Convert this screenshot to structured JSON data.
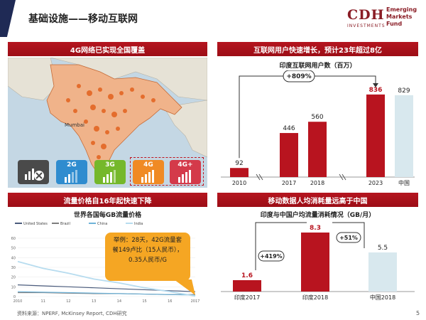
{
  "header": {
    "title": "基础设施——移动互联网",
    "logo_main": "CDH",
    "logo_sub_line1": "Emerging",
    "logo_sub_line2": "Markets",
    "logo_sub_line3": "Fund",
    "logo_sub_bottom": "INVESTMENTS"
  },
  "panel_top_left": {
    "title": "4G网络已实现全国覆盖",
    "icons": [
      {
        "name": "no-signal-icon",
        "label": ""
      },
      {
        "name": "2g-icon",
        "label": "2G"
      },
      {
        "name": "3g-icon",
        "label": "3G"
      },
      {
        "name": "4g-icon",
        "label": "4G"
      },
      {
        "name": "4g-plus-icon",
        "label": "4G+"
      }
    ],
    "map_labels": {
      "mumbai": "Mumbai"
    }
  },
  "panel_top_right": {
    "title": "互联网用户快速增长，预计23年超过8亿",
    "subtitle": "印度互联网用户数（百万）",
    "growth_label": "+809%"
  },
  "panel_bottom_left": {
    "title": "流量价格自16年起快速下降",
    "subtitle": "世界各国每GB流量价格",
    "callout_line1": "举例：28天，42G流量套",
    "callout_line2": "餐149卢比（15人民币），",
    "callout_line3": "0.35人民币/G"
  },
  "panel_bottom_right": {
    "title": "移动数据人均消耗量远高于中国",
    "subtitle": "印度与中国户均流量消耗情况（GB/月）",
    "growth_label_1": "+419%",
    "growth_label_2": "+51%"
  },
  "footer": {
    "source": "资料来源：NPERF, McKinsey Report, CDH研究",
    "page": "5"
  },
  "colors": {
    "accent_red": "#b8141f",
    "navy": "#1f2a55",
    "light_bar": "#d8e8ee",
    "callout": "#f5a623"
  },
  "chart_data": [
    {
      "type": "bar",
      "categories": [
        "2010",
        "2017",
        "2018",
        "2023",
        "中国"
      ],
      "values": [
        92,
        446,
        560,
        836,
        829
      ],
      "ylabel": "",
      "title": "印度互联网用户数（百万）"
    },
    {
      "type": "line",
      "title": "世界各国每GB流量价格",
      "x": [
        "2010",
        "11",
        "12",
        "13",
        "14",
        "15",
        "16",
        "2017"
      ],
      "ylim": [
        0,
        60
      ],
      "yticks": [
        0,
        10,
        20,
        30,
        40,
        50,
        60
      ],
      "series": [
        {
          "name": "United States",
          "values": [
            12,
            11,
            10,
            9,
            8,
            7,
            6,
            5
          ]
        },
        {
          "name": "Brazil",
          "values": [
            4,
            4,
            3.5,
            3,
            3,
            2.5,
            2,
            2
          ]
        },
        {
          "name": "China",
          "values": [
            5,
            4.5,
            4,
            3.5,
            3,
            2.5,
            2,
            1.5
          ]
        },
        {
          "name": "India",
          "values": [
            36,
            29,
            24,
            18,
            14,
            9,
            5,
            0.5
          ]
        }
      ]
    },
    {
      "type": "bar",
      "categories": [
        "印度2017",
        "印度2018",
        "中国2018"
      ],
      "values": [
        1.6,
        8.3,
        5.5
      ],
      "title": "印度与中国户均流量消耗情况（GB/月）"
    }
  ]
}
